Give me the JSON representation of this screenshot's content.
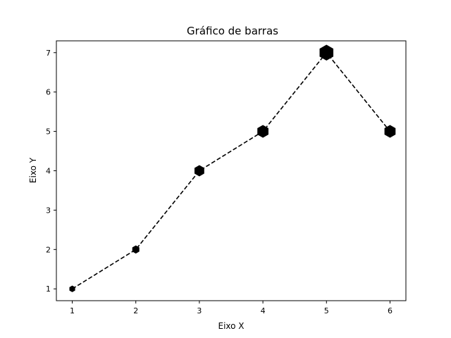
{
  "chart_data": {
    "type": "line",
    "title": "Gráfico de barras",
    "xlabel": "Eixo X",
    "ylabel": "Eixo Y",
    "xlim": [
      0.75,
      6.25
    ],
    "ylim": [
      0.7,
      7.3
    ],
    "x_ticks": [
      1,
      2,
      3,
      4,
      5,
      6
    ],
    "y_ticks": [
      1,
      2,
      3,
      4,
      5,
      6,
      7
    ],
    "grid": false,
    "line_style": "dashed",
    "marker": "hexagon",
    "marker_size_encodes": "y",
    "colors": {
      "line": "#000000",
      "marker": "#000000",
      "axes": "#000000",
      "background": "#ffffff"
    },
    "series": [
      {
        "x": [
          1,
          2,
          3,
          4,
          5,
          6
        ],
        "y": [
          1,
          2,
          4,
          5,
          7,
          5
        ]
      }
    ]
  }
}
